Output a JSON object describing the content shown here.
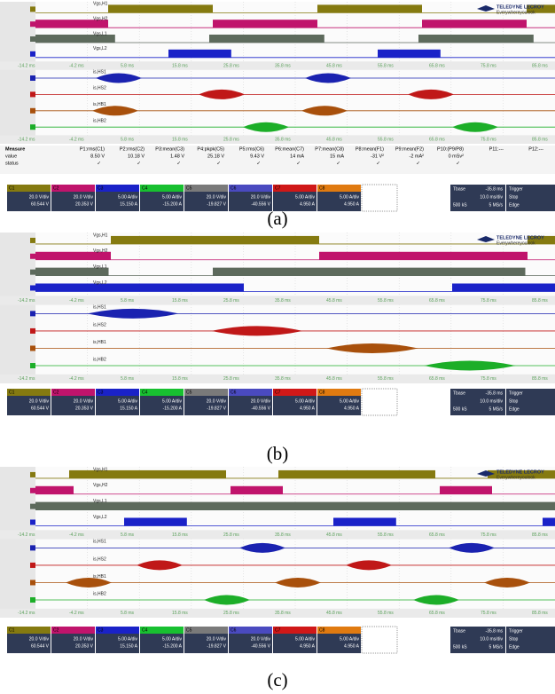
{
  "logo": {
    "brand": "TELEDYNE LECROY",
    "slogan": "Everywhereyoulook"
  },
  "trace_labels": [
    "Vgs,H1",
    "Vgs,H2",
    "Vgs,L1",
    "Vgs,L2",
    "is,HS1",
    "is,HS2",
    "is,HB1",
    "is,HB2"
  ],
  "time_labels": [
    "-14.2 ms",
    "-4.2 ms",
    "5.8 ms",
    "15.8 ms",
    "25.8 ms",
    "35.8 ms",
    "45.8 ms",
    "55.8 ms",
    "65.8 ms",
    "75.8 ms",
    "85.8 ms"
  ],
  "channels": [
    {
      "name": "C1",
      "scale": "20.0 V/div",
      "offset": "60.544 V"
    },
    {
      "name": "C2",
      "scale": "20.0 V/div",
      "offset": "20.353 V"
    },
    {
      "name": "C3",
      "scale": "5.00 A/div",
      "offset": "15.150 A"
    },
    {
      "name": "C4",
      "scale": "5.00 A/div",
      "offset": "-15.200 A"
    },
    {
      "name": "C5",
      "scale": "20.0 V/div",
      "offset": "-19.827 V"
    },
    {
      "name": "C6",
      "scale": "20.0 V/div",
      "offset": "-40.556 V"
    },
    {
      "name": "C7",
      "scale": "5.00 A/div",
      "offset": "4.950 A"
    },
    {
      "name": "C8",
      "scale": "5.00 A/div",
      "offset": "4.950 A"
    }
  ],
  "timebase": {
    "label": "Tbase",
    "delay": "-35.8 ms",
    "scale": "10.0 ms/div",
    "samples": "500 kS",
    "rate": "5 MS/s"
  },
  "trigger": {
    "label": "Trigger",
    "mode": "Stop",
    "type": "Edge"
  },
  "measure": {
    "title": "Measure",
    "rows": [
      "value",
      "status"
    ],
    "params": [
      {
        "name": "P1:rms(C1)",
        "value": "8.50 V",
        "status": "✓"
      },
      {
        "name": "P2:rms(C2)",
        "value": "10.18 V",
        "status": "✓"
      },
      {
        "name": "P3:mean(C3)",
        "value": "1.48 V",
        "status": "✓"
      },
      {
        "name": "P4:pkpk(C5)",
        "value": "25.18 V",
        "status": "✓"
      },
      {
        "name": "P5:rms(C6)",
        "value": "9.43 V",
        "status": "✓"
      },
      {
        "name": "P6:mean(C7)",
        "value": "14 mA",
        "status": "✓"
      },
      {
        "name": "P7:mean(C8)",
        "value": "15 mA",
        "status": "✓"
      },
      {
        "name": "P8:mean(F1)",
        "value": "-31 V²",
        "status": "✓"
      },
      {
        "name": "P9:mean(F2)",
        "value": "-2 mA²",
        "status": "✓"
      },
      {
        "name": "P10:(P9/P8)",
        "value": "0 mSv²",
        "status": "✓"
      },
      {
        "name": "P11:---"
      },
      {
        "name": "P12:---"
      }
    ]
  },
  "panels": [
    {
      "caption": "(a)"
    },
    {
      "caption": "(b)"
    },
    {
      "caption": "(c)"
    }
  ]
}
